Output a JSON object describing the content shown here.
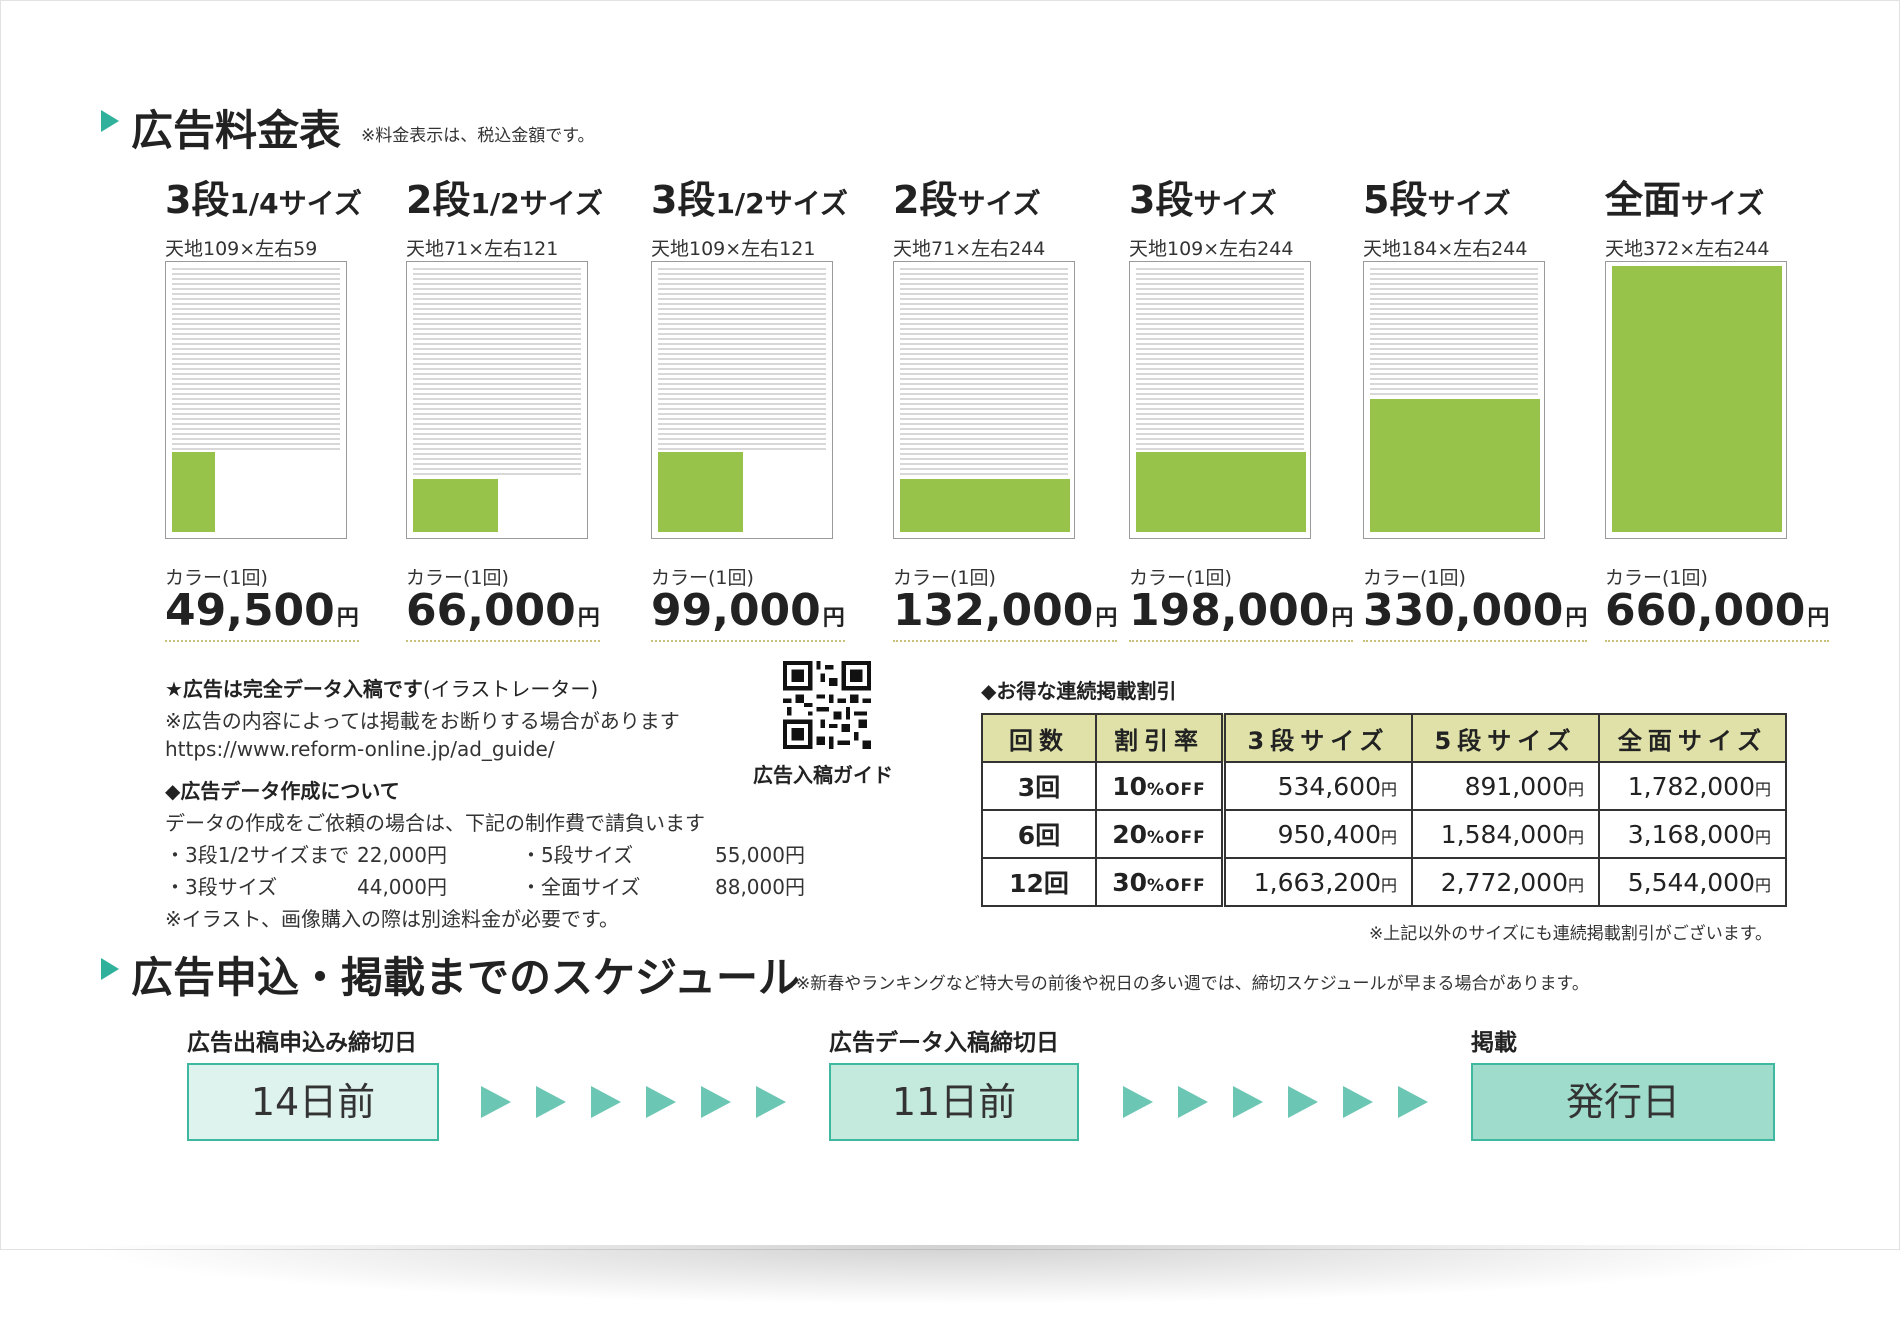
{
  "rate": {
    "title": "広告料金表",
    "note": "※料金表示は、税込金額です。",
    "sizes": [
      {
        "name": "3段",
        "fraction": "1/4",
        "suffix": "サイズ",
        "dims": "天地109×左右59",
        "price_label": "カラー(1回)",
        "price": "49,500",
        "unit": "円",
        "coverage_w": 0.25,
        "coverage_h": 0.3
      },
      {
        "name": "2段",
        "fraction": "1/2",
        "suffix": "サイズ",
        "dims": "天地71×左右121",
        "price_label": "カラー(1回)",
        "price": "66,000",
        "unit": "円",
        "coverage_w": 0.5,
        "coverage_h": 0.2
      },
      {
        "name": "3段",
        "fraction": "1/2",
        "suffix": "サイズ",
        "dims": "天地109×左右121",
        "price_label": "カラー(1回)",
        "price": "99,000",
        "unit": "円",
        "coverage_w": 0.5,
        "coverage_h": 0.3
      },
      {
        "name": "2段",
        "fraction": "",
        "suffix": "サイズ",
        "dims": "天地71×左右244",
        "price_label": "カラー(1回)",
        "price": "132,000",
        "unit": "円",
        "coverage_w": 1,
        "coverage_h": 0.2
      },
      {
        "name": "3段",
        "fraction": "",
        "suffix": "サイズ",
        "dims": "天地109×左右244",
        "price_label": "カラー(1回)",
        "price": "198,000",
        "unit": "円",
        "coverage_w": 1,
        "coverage_h": 0.3
      },
      {
        "name": "5段",
        "fraction": "",
        "suffix": "サイズ",
        "dims": "天地184×左右244",
        "price_label": "カラー(1回)",
        "price": "330,000",
        "unit": "円",
        "coverage_w": 1,
        "coverage_h": 0.5
      },
      {
        "name": "全面",
        "fraction": "",
        "suffix": "サイズ",
        "dims": "天地372×左右244",
        "price_label": "カラー(1回)",
        "price": "660,000",
        "unit": "円",
        "coverage_w": 1,
        "coverage_h": 1
      }
    ]
  },
  "info": {
    "line1_bold": "★広告は完全データ入稿です",
    "line1_rest": "(イラストレーター)",
    "line2": "※広告の内容によっては掲載をお断りする場合があります",
    "line3": "https://www.reform-online.jp/ad_guide/",
    "qr_label": "広告入稿ガイド",
    "data_title": "◆広告データ作成について",
    "data_desc": "データの作成をご依頼の場合は、下記の制作費で請負います",
    "fees": [
      {
        "item": "・3段1/2サイズまで",
        "price": "22,000円"
      },
      {
        "item": "・5段サイズ",
        "price": "55,000円"
      },
      {
        "item": "・3段サイズ",
        "price": "44,000円"
      },
      {
        "item": "・全面サイズ",
        "price": "88,000円"
      }
    ],
    "fee_note": "※イラスト、画像購入の際は別途料金が必要です。"
  },
  "discount": {
    "title": "◆お得な連続掲載割引",
    "headers": [
      "回数",
      "割引率",
      "3段サイズ",
      "5段サイズ",
      "全面サイズ"
    ],
    "rows": [
      {
        "times": "3回",
        "rate": "10",
        "off": "%OFF",
        "s3": "534,600",
        "s5": "891,000",
        "full": "1,782,000"
      },
      {
        "times": "6回",
        "rate": "20",
        "off": "%OFF",
        "s3": "950,400",
        "s5": "1,584,000",
        "full": "3,168,000"
      },
      {
        "times": "12回",
        "rate": "30",
        "off": "%OFF",
        "s3": "1,663,200",
        "s5": "2,772,000",
        "full": "5,544,000"
      }
    ],
    "unit": "円",
    "note": "※上記以外のサイズにも連続掲載割引がございます。"
  },
  "schedule": {
    "title": "広告申込・掲載までのスケジュール",
    "note": "※新春やランキングなど特大号の前後や祝日の多い週では、締切スケジュールが早まる場合があります。",
    "steps": [
      {
        "label": "広告出稿申込み締切日",
        "value": "14日前"
      },
      {
        "label": "広告データ入稿締切日",
        "value": "11日前"
      },
      {
        "label": "掲載",
        "value": "発行日"
      }
    ]
  },
  "colors": {
    "accent": "#2fb19c",
    "ad_fill": "#97c34a",
    "table_head": "#dfe1a8"
  }
}
